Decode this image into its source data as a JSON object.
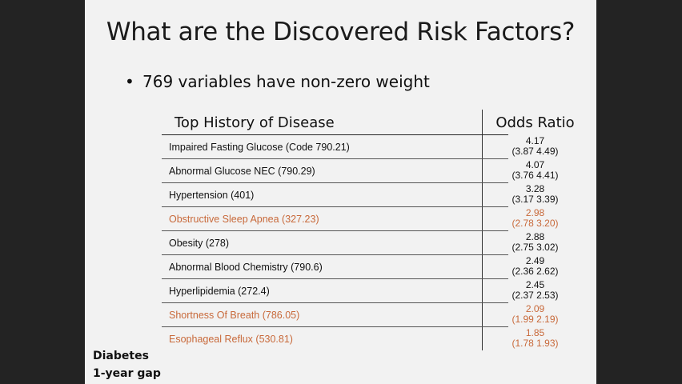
{
  "slide": {
    "title": "What are the Discovered Risk Factors?",
    "bullet": "769 variables have non-zero weight",
    "table": {
      "header_left": "Top History of Disease",
      "header_right": "Odds Ratio",
      "rows": [
        {
          "name": "Impaired Fasting Glucose (Code 790.21)",
          "or": "4.17",
          "ci": "(3.87 4.49)",
          "highlight": false
        },
        {
          "name": "Abnormal Glucose NEC (790.29)",
          "or": "4.07",
          "ci": "(3.76 4.41)",
          "highlight": false
        },
        {
          "name": "Hypertension (401)",
          "or": "3.28",
          "ci": "(3.17 3.39)",
          "highlight": false
        },
        {
          "name": "Obstructive Sleep Apnea (327.23)",
          "or": "2.98",
          "ci": "(2.78 3.20)",
          "highlight": true
        },
        {
          "name": "Obesity (278)",
          "or": "2.88",
          "ci": "(2.75 3.02)",
          "highlight": false
        },
        {
          "name": "Abnormal Blood Chemistry (790.6)",
          "or": "2.49",
          "ci": "(2.36 2.62)",
          "highlight": false
        },
        {
          "name": "Hyperlipidemia (272.4)",
          "or": "2.45",
          "ci": "(2.37 2.53)",
          "highlight": false
        },
        {
          "name": "Shortness Of Breath (786.05)",
          "or": "2.09",
          "ci": "(1.99 2.19)",
          "highlight": true
        },
        {
          "name": "Esophageal Reflux (530.81)",
          "or": "1.85",
          "ci": "(1.78 1.93)",
          "highlight": true
        }
      ]
    },
    "footnote": [
      "Diabetes",
      "1-year gap"
    ],
    "colors": {
      "highlight": "#c8693a",
      "background": "#f2f2f2",
      "frame": "#232323"
    }
  }
}
